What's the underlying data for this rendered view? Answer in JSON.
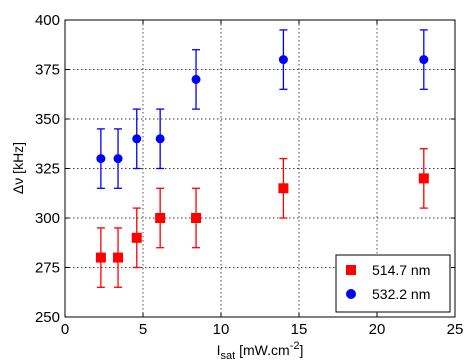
{
  "chart_data": {
    "type": "scatter",
    "xlabel_main": "I",
    "xlabel_sub": "sat",
    "xlabel_rest": " [mW.cm",
    "xlabel_sup": "-2",
    "xlabel_end": "]",
    "ylabel": "Δν [kHz]",
    "xlim": [
      0,
      25
    ],
    "ylim": [
      250,
      400
    ],
    "xticks": [
      0,
      5,
      10,
      15,
      20,
      25
    ],
    "yticks": [
      250,
      275,
      300,
      325,
      350,
      375,
      400
    ],
    "grid": true,
    "legend_position": "bottom-right",
    "series": [
      {
        "name": "514.7 nm",
        "marker": "square",
        "color": "#ff0000",
        "x": [
          2.3,
          3.4,
          4.6,
          6.1,
          8.4,
          14.0,
          23.0
        ],
        "y": [
          280,
          280,
          290,
          300,
          300,
          315,
          320
        ],
        "err": [
          15,
          15,
          15,
          15,
          15,
          15,
          15
        ]
      },
      {
        "name": "532.2 nm",
        "marker": "circle",
        "color": "#0000ff",
        "x": [
          2.3,
          3.4,
          4.6,
          6.1,
          8.4,
          14.0,
          23.0
        ],
        "y": [
          330,
          330,
          340,
          340,
          370,
          380,
          380
        ],
        "err": [
          15,
          15,
          15,
          15,
          15,
          15,
          15
        ]
      }
    ]
  }
}
